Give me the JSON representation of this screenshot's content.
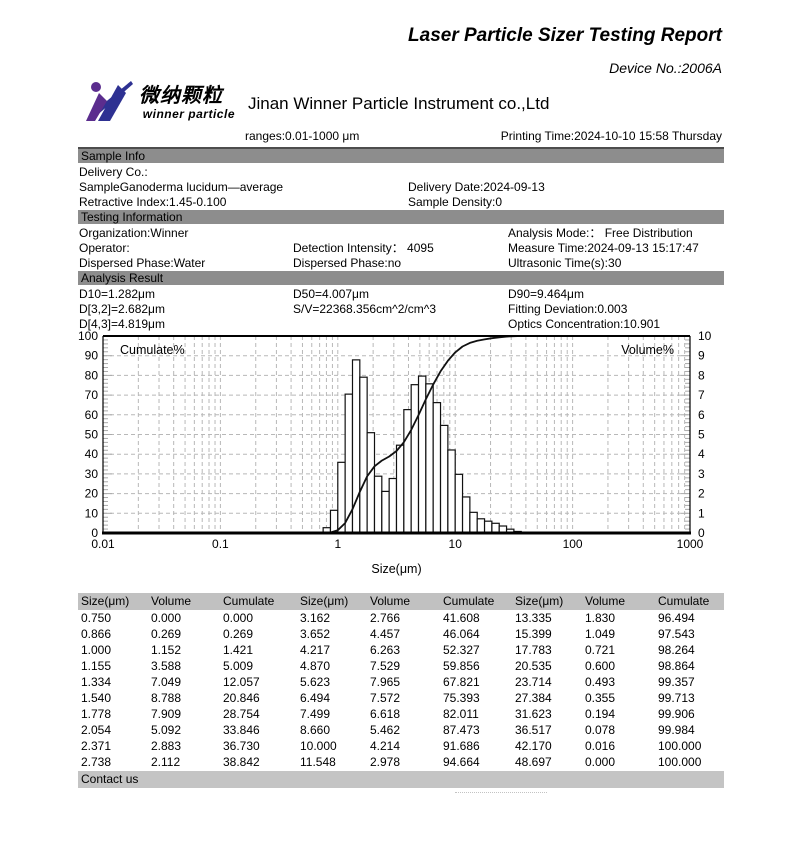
{
  "header": {
    "title": "Laser Particle Sizer Testing Report",
    "device_no": "Device No.:2006A",
    "logo": {
      "cn": "微纳颗粒",
      "en": "winner particle"
    },
    "company": "Jinan Winner Particle Instrument co.,Ltd",
    "ranges": "ranges:0.01-1000 μm",
    "printing_time": "Printing Time:2024-10-10 15:58 Thursday"
  },
  "sample_info": {
    "section_title": "Sample Info",
    "delivery_co": "Delivery Co.:",
    "sample": "SampleGanoderma lucidum—average",
    "delivery_date": "Delivery Date:2024-09-13",
    "retractive_index": "Retractive Index:1.45-0.100",
    "sample_density": "Sample Density:0"
  },
  "testing_info": {
    "section_title": "Testing Information",
    "organization": "Organization:Winner",
    "analysis_mode": "Analysis Mode:： Free Distribution",
    "operator": "Operator:",
    "detection_intensity": "Detection Intensity： 4095",
    "measure_time": "Measure Time:2024-09-13 15:17:47",
    "dispersed_phase_1": "Dispersed Phase:Water",
    "dispersed_phase_2": "Dispersed Phase:no",
    "ultrasonic_time": "Ultrasonic Time(s):30"
  },
  "analysis_result": {
    "section_title": "Analysis Result",
    "d10": "D10=1.282μm",
    "d50": "D50=4.007μm",
    "d90": "D90=9.464μm",
    "d32": "D[3,2]=2.682μm",
    "sv": "S/V=22368.356cm^2/cm^3",
    "fitting_deviation": "Fitting Deviation:0.003",
    "d43": "D[4,3]=4.819μm",
    "optics_concentration": "Optics Concentration:10.901"
  },
  "chart_data": {
    "type": "bar",
    "subtype": "log-histogram with cumulative line",
    "title": "",
    "xlabel": "Size(μm)",
    "left_axis_label": "Cumulate%",
    "right_axis_label": "Volume%",
    "x_scale": "log",
    "xlim": [
      0.01,
      1000
    ],
    "left_ylim": [
      0,
      100
    ],
    "right_ylim": [
      0,
      10
    ],
    "grid": "dashed",
    "x_ticks": [
      "0.01",
      "0.1",
      "1",
      "10",
      "100",
      "1000"
    ],
    "left_ticks": [
      0,
      10,
      20,
      30,
      40,
      50,
      60,
      70,
      80,
      90,
      100
    ],
    "right_ticks": [
      0,
      1,
      2,
      3,
      4,
      5,
      6,
      7,
      8,
      9,
      10
    ],
    "sizes": [
      0.75,
      0.866,
      1.0,
      1.155,
      1.334,
      1.54,
      1.778,
      2.054,
      2.371,
      2.738,
      3.162,
      3.652,
      4.217,
      4.87,
      5.623,
      6.494,
      7.499,
      8.66,
      10.0,
      11.548,
      13.335,
      15.399,
      17.783,
      20.535,
      23.714,
      27.384,
      31.623,
      36.517,
      42.17,
      48.697
    ],
    "series": [
      {
        "name": "Volume%",
        "values": [
          0.0,
          0.269,
          1.152,
          3.588,
          7.049,
          8.788,
          7.909,
          5.092,
          2.883,
          2.112,
          2.766,
          4.457,
          6.263,
          7.529,
          7.965,
          7.572,
          6.618,
          5.462,
          4.214,
          2.978,
          1.83,
          1.049,
          0.721,
          0.6,
          0.493,
          0.355,
          0.194,
          0.078,
          0.016,
          0.0
        ]
      },
      {
        "name": "Cumulate%",
        "values": [
          0.0,
          0.269,
          1.421,
          5.009,
          12.057,
          20.846,
          28.754,
          33.846,
          36.73,
          38.842,
          41.608,
          46.064,
          52.327,
          59.856,
          67.821,
          75.393,
          82.011,
          87.473,
          91.686,
          94.664,
          96.494,
          97.543,
          98.264,
          98.864,
          99.357,
          99.713,
          99.906,
          99.984,
          100.0,
          100.0
        ]
      }
    ]
  },
  "table": {
    "headers": [
      "Size(μm)",
      "Volume",
      "Cumulate",
      "Size(μm)",
      "Volume",
      "Cumulate",
      "Size(μm)",
      "Volume",
      "Cumulate"
    ],
    "rows": [
      [
        "0.750",
        "0.000",
        "0.000",
        "3.162",
        "2.766",
        "41.608",
        "13.335",
        "1.830",
        "96.494"
      ],
      [
        "0.866",
        "0.269",
        "0.269",
        "3.652",
        "4.457",
        "46.064",
        "15.399",
        "1.049",
        "97.543"
      ],
      [
        "1.000",
        "1.152",
        "1.421",
        "4.217",
        "6.263",
        "52.327",
        "17.783",
        "0.721",
        "98.264"
      ],
      [
        "1.155",
        "3.588",
        "5.009",
        "4.870",
        "7.529",
        "59.856",
        "20.535",
        "0.600",
        "98.864"
      ],
      [
        "1.334",
        "7.049",
        "12.057",
        "5.623",
        "7.965",
        "67.821",
        "23.714",
        "0.493",
        "99.357"
      ],
      [
        "1.540",
        "8.788",
        "20.846",
        "6.494",
        "7.572",
        "75.393",
        "27.384",
        "0.355",
        "99.713"
      ],
      [
        "1.778",
        "7.909",
        "28.754",
        "7.499",
        "6.618",
        "82.011",
        "31.623",
        "0.194",
        "99.906"
      ],
      [
        "2.054",
        "5.092",
        "33.846",
        "8.660",
        "5.462",
        "87.473",
        "36.517",
        "0.078",
        "99.984"
      ],
      [
        "2.371",
        "2.883",
        "36.730",
        "10.000",
        "4.214",
        "91.686",
        "42.170",
        "0.016",
        "100.000"
      ],
      [
        "2.738",
        "2.112",
        "38.842",
        "11.548",
        "2.978",
        "94.664",
        "48.697",
        "0.000",
        "100.000"
      ]
    ]
  },
  "footer": {
    "contact": "Contact us"
  },
  "colors": {
    "section_bar": "#8d8d8d",
    "table_header_bar": "#c1c1c1",
    "contact_bar": "#c4c4c4",
    "logo_purple": "#5b2d8e",
    "logo_blue": "#2e3192",
    "grid_gray": "#b8b8b8"
  }
}
